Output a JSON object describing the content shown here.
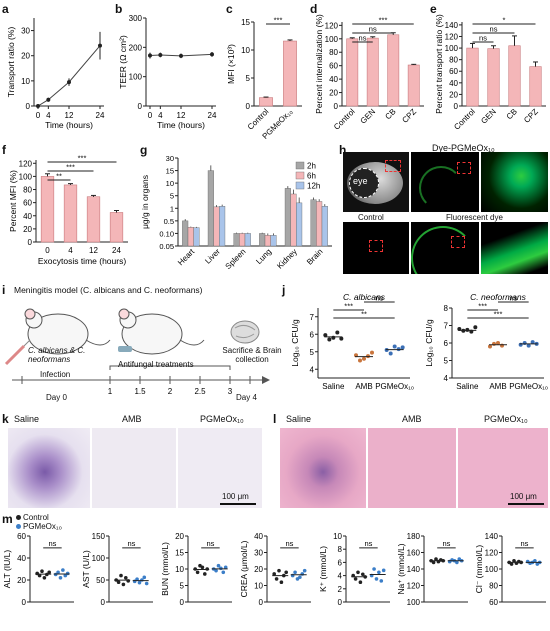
{
  "panel_letters": [
    "a",
    "b",
    "c",
    "d",
    "e",
    "f",
    "g",
    "h",
    "i",
    "j",
    "k",
    "l",
    "m"
  ],
  "colors": {
    "pink_bar": "#f4b6b8",
    "pink_edge": "#c97b7e",
    "line": "#444444",
    "gray_bar": "#a6a6a6",
    "blue_bar": "#a9c4ea",
    "green_fluor": "#2ecc40",
    "he_pink": "#e9a9c6",
    "ihc_blue": "#8a7cc0"
  },
  "chart_data": [
    {
      "id": "a",
      "type": "line",
      "x": [
        0,
        4,
        12,
        24
      ],
      "values": [
        0,
        2.5,
        9.5,
        24
      ],
      "errors": [
        0,
        0.8,
        1.5,
        5.5
      ],
      "xlabel": "Time (hours)",
      "ylabel": "Transport ratio (%)",
      "ylim": [
        0,
        35
      ],
      "yticks": [
        "0",
        "10",
        "20",
        "30"
      ],
      "xticks": [
        "0",
        "4",
        "12",
        "24"
      ]
    },
    {
      "id": "b",
      "type": "line",
      "x": [
        0,
        4,
        12,
        24
      ],
      "values": [
        172,
        174,
        171,
        176
      ],
      "errors": [
        10,
        8,
        8,
        8
      ],
      "xlabel": "Time (hours)",
      "ylabel": "TEER (Ω cm²)",
      "ylim": [
        0,
        300
      ],
      "yticks": [
        "0",
        "100",
        "200",
        "300"
      ],
      "xticks": [
        "0",
        "4",
        "12",
        "24"
      ]
    },
    {
      "id": "c",
      "type": "bar",
      "categories": [
        "Control",
        "PGMeOx₁₀"
      ],
      "values": [
        1.5,
        11.6
      ],
      "errors": [
        0.1,
        0.2
      ],
      "ylabel": "MFI (×10³)",
      "ylim": [
        0,
        15
      ],
      "yticks": [
        "0",
        "5",
        "10",
        "15"
      ],
      "sig": [
        "***"
      ]
    },
    {
      "id": "d",
      "type": "bar",
      "categories": [
        "Control",
        "GEN",
        "CB",
        "CPZ"
      ],
      "values": [
        100,
        101,
        106,
        61
      ],
      "errors": [
        1.5,
        2,
        3,
        1
      ],
      "ylabel": "Percent internalization (%)",
      "ylim": [
        0,
        125
      ],
      "yticks": [
        "0",
        "20",
        "40",
        "60",
        "80",
        "100",
        "120"
      ],
      "sig": [
        "ns",
        "ns",
        "***"
      ]
    },
    {
      "id": "e",
      "type": "bar",
      "categories": [
        "Control",
        "GEN",
        "CB",
        "CPZ"
      ],
      "values": [
        100,
        99,
        104,
        68
      ],
      "errors": [
        8,
        5,
        17,
        8
      ],
      "ylabel": "Percent transport ratio (%)",
      "ylim": [
        0,
        145
      ],
      "yticks": [
        "0",
        "20",
        "40",
        "60",
        "80",
        "100",
        "120",
        "140"
      ],
      "sig": [
        "ns",
        "ns",
        "*"
      ]
    },
    {
      "id": "f",
      "type": "bar",
      "categories": [
        "0",
        "4",
        "12",
        "24"
      ],
      "values": [
        100,
        87,
        69,
        45
      ],
      "errors": [
        4,
        2,
        2,
        3
      ],
      "xlabel": "Exocytosis time (hours)",
      "ylabel": "Percent MFI (%)",
      "ylim": [
        0,
        125
      ],
      "yticks": [
        "0",
        "20",
        "40",
        "60",
        "80",
        "100",
        "120"
      ],
      "sig": [
        "**",
        "***",
        "***"
      ]
    },
    {
      "id": "g",
      "type": "bar",
      "categories": [
        "Heart",
        "Liver",
        "Spleen",
        "Lung",
        "Kidney",
        "Brain"
      ],
      "series": [
        {
          "name": "2h",
          "values": [
            0.5,
            15,
            0.1,
            0.1,
            7.5,
            3
          ],
          "errors": [
            0.05,
            5,
            0.01,
            0.01,
            1,
            1
          ]
        },
        {
          "name": "6h",
          "values": [
            0.22,
            1.2,
            0.1,
            0.09,
            5.5,
            2.4
          ],
          "errors": [
            0.02,
            0.3,
            0.01,
            0.01,
            1.5,
            0.8
          ]
        },
        {
          "name": "12h",
          "values": [
            0.21,
            1.3,
            0.1,
            0.09,
            2,
            1.3
          ],
          "errors": [
            0.02,
            0.3,
            0.01,
            0.01,
            2,
            0.4
          ]
        }
      ],
      "ylabel": "μg/g in organs",
      "yticks": [
        "0.05",
        "0.10",
        "0.5",
        "1",
        "5",
        "10",
        "15",
        "30"
      ],
      "scale": "broken-log"
    },
    {
      "id": "j1",
      "type": "scatter",
      "categories": [
        "Saline",
        "AMB",
        "PGMeOx₁₀"
      ],
      "values": [
        5.85,
        4.72,
        5.12
      ],
      "points": [
        [
          5.95,
          5.7,
          5.8,
          6.1,
          5.75
        ],
        [
          4.8,
          4.5,
          4.6,
          4.75,
          4.95
        ],
        [
          5.1,
          4.9,
          5.3,
          5.15,
          5.25
        ]
      ],
      "title": "C. albicans",
      "ylabel": "Log₁₀ CFU/g",
      "ylim": [
        3.5,
        7.5
      ],
      "yticks": [
        "4",
        "5",
        "6",
        "7"
      ],
      "sig": [
        "**",
        "***",
        "ns"
      ]
    },
    {
      "id": "j2",
      "type": "scatter",
      "categories": [
        "Saline",
        "AMB",
        "PGMeOx₁₀"
      ],
      "values": [
        6.72,
        5.9,
        5.95
      ],
      "points": [
        [
          6.8,
          6.7,
          6.75,
          6.65,
          6.9
        ],
        [
          5.8,
          5.95,
          6.0,
          5.85
        ],
        [
          5.9,
          6.0,
          5.85,
          6.05,
          5.95
        ]
      ],
      "title": "C. neoformans",
      "ylabel": "Log₁₀ CFU/g",
      "ylim": [
        4,
        8
      ],
      "yticks": [
        "4",
        "5",
        "6",
        "7",
        "8"
      ],
      "sig": [
        "***",
        "***",
        "ns"
      ]
    },
    {
      "id": "m1",
      "type": "scatter",
      "ylabel": "ALT (IU/L)",
      "ylim": [
        0,
        60
      ],
      "yticks": [
        "0",
        "20",
        "40",
        "60"
      ],
      "series": [
        {
          "name": "Control",
          "points": [
            26,
            24,
            28,
            22,
            25,
            27
          ]
        },
        {
          "name": "PGMeOx₁₀",
          "points": [
            25,
            27,
            22,
            29,
            24,
            26
          ]
        }
      ],
      "sig": [
        "ns"
      ]
    },
    {
      "id": "m2",
      "type": "scatter",
      "ylabel": "AST (U/L)",
      "ylim": [
        0,
        150
      ],
      "yticks": [
        "0",
        "50",
        "100",
        "150"
      ],
      "series": [
        {
          "name": "Control",
          "points": [
            50,
            45,
            60,
            40,
            55,
            48
          ]
        },
        {
          "name": "PGMeOx₁₀",
          "points": [
            47,
            52,
            44,
            50,
            56,
            42
          ]
        }
      ],
      "sig": [
        "ns"
      ]
    },
    {
      "id": "m3",
      "type": "scatter",
      "ylabel": "BUN (mmol/L)",
      "ylim": [
        0,
        20
      ],
      "yticks": [
        "0",
        "5",
        "10",
        "15",
        "20"
      ],
      "series": [
        {
          "name": "Control",
          "points": [
            10,
            9,
            11,
            10.5,
            8.5,
            10
          ]
        },
        {
          "name": "PGMeOx₁₀",
          "points": [
            10,
            9.5,
            11,
            10.2,
            9,
            10.5
          ]
        }
      ],
      "sig": [
        "ns"
      ]
    },
    {
      "id": "m4",
      "type": "scatter",
      "ylabel": "CREA (μmol/L)",
      "ylim": [
        0,
        40
      ],
      "yticks": [
        "0",
        "10",
        "20",
        "30",
        "40"
      ],
      "series": [
        {
          "name": "Control",
          "points": [
            17,
            14,
            19,
            12,
            16,
            18
          ]
        },
        {
          "name": "PGMeOx₁₀",
          "points": [
            16,
            18,
            14,
            15,
            17,
            19
          ]
        }
      ],
      "sig": [
        "ns"
      ]
    },
    {
      "id": "m5",
      "type": "scatter",
      "ylabel": "K⁺ (mmol/L)",
      "ylim": [
        0,
        10
      ],
      "yticks": [
        "0",
        "2",
        "4",
        "6",
        "8",
        "10"
      ],
      "series": [
        {
          "name": "Control",
          "points": [
            4,
            3.5,
            4.5,
            3,
            4.2,
            3.8
          ]
        },
        {
          "name": "PGMeOx₁₀",
          "points": [
            4,
            5,
            3.5,
            4.5,
            3.2,
            4.8
          ]
        }
      ],
      "sig": [
        "ns"
      ]
    },
    {
      "id": "m6",
      "type": "scatter",
      "ylabel": "Na⁺ (mmol/L)",
      "ylim": [
        100,
        180
      ],
      "yticks": [
        "100",
        "120",
        "140",
        "160",
        "180"
      ],
      "series": [
        {
          "name": "Control",
          "points": [
            150,
            148,
            152,
            149,
            151,
            150
          ]
        },
        {
          "name": "PGMeOx₁₀",
          "points": [
            149,
            151,
            150,
            148,
            152,
            150
          ]
        }
      ],
      "sig": [
        "ns"
      ]
    },
    {
      "id": "m7",
      "type": "scatter",
      "ylabel": "Cl⁻ (mmol/L)",
      "ylim": [
        60,
        140
      ],
      "yticks": [
        "60",
        "80",
        "100",
        "120",
        "140"
      ],
      "series": [
        {
          "name": "Control",
          "points": [
            108,
            106,
            110,
            107,
            109,
            108
          ]
        },
        {
          "name": "PGMeOx₁₀",
          "points": [
            109,
            107,
            108,
            110,
            106,
            108
          ]
        }
      ],
      "sig": [
        "ns"
      ]
    }
  ],
  "h": {
    "dye_label": "Dye-PGMeOx₁₀",
    "eye_label": "eye",
    "control_label": "Control",
    "fluor_label": "Fluorescent dye"
  },
  "i": {
    "title": "Meningitis model (C. albicans and C. neoformans)",
    "infection_species": "C. albicans & C. neoformans",
    "infection": "Infection",
    "treatments": "Antifungal treatments",
    "sacrifice": "Sacrifice & Brain collection",
    "day0": "Day 0",
    "day4": "Day 4",
    "ticks": [
      "1",
      "1.5",
      "2",
      "2.5",
      "3"
    ]
  },
  "k": {
    "labels": [
      "Saline",
      "AMB",
      "PGMeOx₁₀"
    ],
    "scale": "100 μm"
  },
  "l": {
    "labels": [
      "Saline",
      "AMB",
      "PGMeOx₁₀"
    ],
    "scale": "100 μm"
  },
  "m_legend": [
    "Control",
    "PGMeOx₁₀"
  ]
}
